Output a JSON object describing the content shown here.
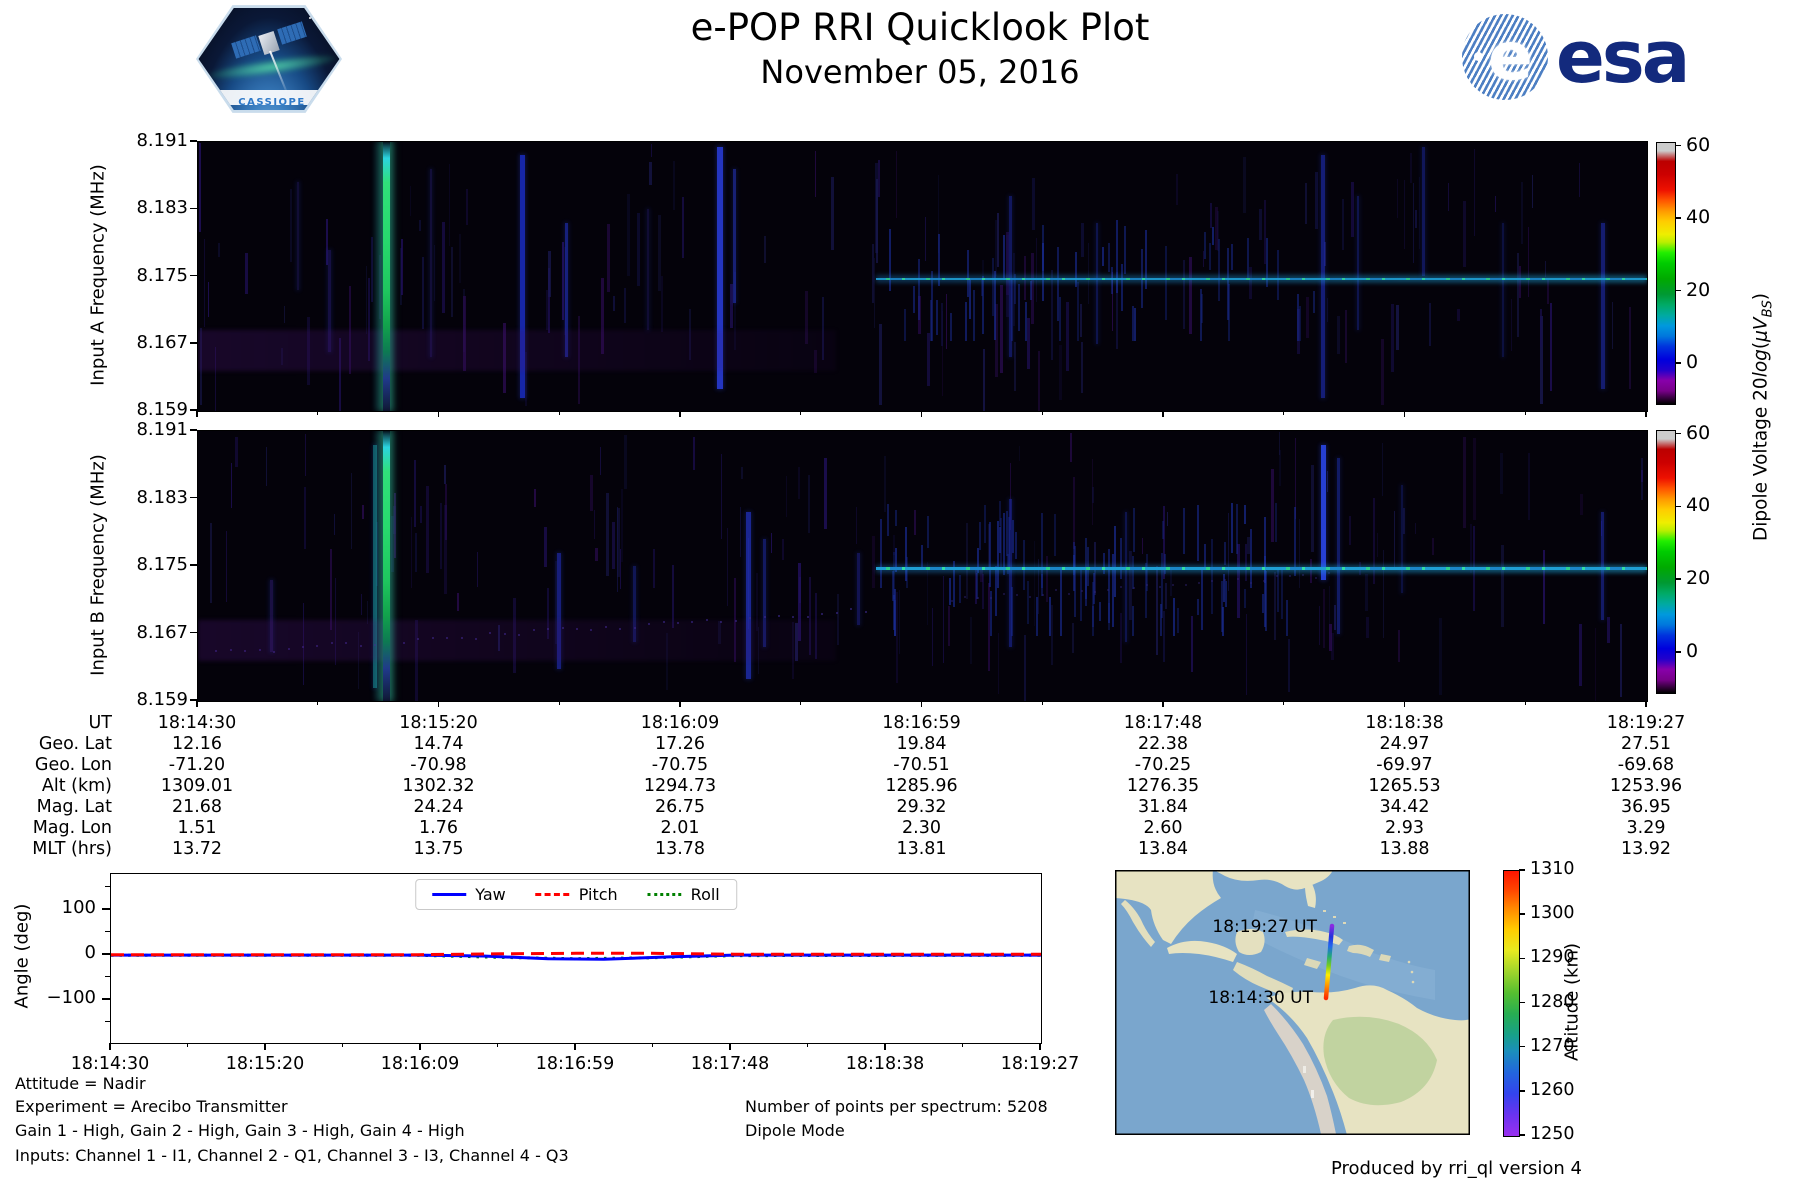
{
  "header": {
    "title": "e-POP RRI Quicklook Plot",
    "subtitle": "November 05, 2016",
    "cassiope_badge_label": "CASSIOPE",
    "esa_globe_letter": "e",
    "esa_wordmark": "esa"
  },
  "spectrograms": {
    "panel_a_ylabel": "Input A Frequency (MHz)",
    "panel_b_ylabel": "Input B Frequency (MHz)",
    "ytick_labels": [
      "8.191",
      "8.183",
      "8.175",
      "8.167",
      "8.159"
    ],
    "colorbar_label": {
      "prefix": "Dipole Voltage 20",
      "log": "log",
      "open": "(",
      "unit": "μV",
      "sub": "BS",
      "close": ")"
    },
    "colorbar_tick_labels": [
      "60",
      "40",
      "20",
      "0"
    ]
  },
  "ephemeris": {
    "row_labels": [
      "UT",
      "Geo. Lat",
      "Geo. Lon",
      "Alt (km)",
      "Mag. Lat",
      "Mag. Lon",
      "MLT (hrs)"
    ],
    "columns": [
      [
        "18:14:30",
        "12.16",
        "-71.20",
        "1309.01",
        "21.68",
        "1.51",
        "13.72"
      ],
      [
        "18:15:20",
        "14.74",
        "-70.98",
        "1302.32",
        "24.24",
        "1.76",
        "13.75"
      ],
      [
        "18:16:09",
        "17.26",
        "-70.75",
        "1294.73",
        "26.75",
        "2.01",
        "13.78"
      ],
      [
        "18:16:59",
        "19.84",
        "-70.51",
        "1285.96",
        "29.32",
        "2.30",
        "13.81"
      ],
      [
        "18:17:48",
        "22.38",
        "-70.25",
        "1276.35",
        "31.84",
        "2.60",
        "13.84"
      ],
      [
        "18:18:38",
        "24.97",
        "-69.97",
        "1265.53",
        "34.42",
        "2.93",
        "13.88"
      ],
      [
        "18:19:27",
        "27.51",
        "-69.68",
        "1253.96",
        "36.95",
        "3.29",
        "13.92"
      ]
    ]
  },
  "angle_plot": {
    "ylabel": "Angle (deg)",
    "ytick_labels": [
      "100",
      "0",
      "−100"
    ],
    "xtick_labels": [
      "18:14:30",
      "18:15:20",
      "18:16:09",
      "18:16:59",
      "18:17:48",
      "18:18:38",
      "18:19:27"
    ]
  },
  "map": {
    "label_end": "18:19:27 UT",
    "label_start": "18:14:30 UT",
    "colorbar_label": "Altitude (km)",
    "colorbar_tick_labels": [
      "1310",
      "1300",
      "1290",
      "1280",
      "1270",
      "1260",
      "1250"
    ]
  },
  "footer": {
    "left_lines": [
      "Attitude = Nadir",
      "Experiment = Arecibo Transmitter",
      "Gain 1 - High, Gain 2 - High, Gain 3 - High, Gain 4 - High",
      "Inputs: Channel 1 - I1, Channel 2 - Q1, Channel 3 - I3, Channel 4 - Q3"
    ],
    "right_lines": [
      "Number of points per spectrum: 5208",
      "Dipole Mode"
    ],
    "credit": "Produced by rri_ql version 4"
  },
  "chart_data": [
    {
      "type": "heatmap",
      "id": "input_a_spectrogram",
      "ylabel": "Input A Frequency (MHz)",
      "ylim_mhz": [
        8.159,
        8.191
      ],
      "y_ticks_mhz": [
        8.191,
        8.183,
        8.175,
        8.167,
        8.159
      ],
      "x_ticks_ut": [
        "18:14:30",
        "18:15:20",
        "18:16:09",
        "18:16:59",
        "18:17:48",
        "18:18:38",
        "18:19:27"
      ],
      "colorbar": {
        "label": "Dipole Voltage 20log(μV_BS)",
        "ticks": [
          60,
          40,
          20,
          0
        ],
        "range": [
          -11,
          61
        ],
        "colormap": "nipy_spectral"
      },
      "features": {
        "transmitter_line": {
          "freq_mhz": 8.1747,
          "x0": 0.468,
          "x1": 1.0,
          "level_db": 25,
          "opacity": 0.9
        },
        "bright_band": {
          "x": 0.128,
          "level_db": 42
        },
        "hash": {
          "x0": 0.47,
          "x1": 0.77,
          "y0": 0.28,
          "y1": 0.74,
          "count": 55
        },
        "vstreaks": [
          [
            0.068,
            2,
            0.15,
            0.55,
            "#1e1860",
            0.5
          ],
          [
            0.09,
            3,
            0.4,
            0.78,
            "#231a70",
            0.55
          ],
          [
            0.16,
            2,
            0.1,
            0.8,
            "#201a68",
            0.5
          ],
          [
            0.222,
            5,
            0.05,
            0.95,
            "#1b2fd0",
            0.8
          ],
          [
            0.253,
            3,
            0.3,
            0.8,
            "#2335c8",
            0.6
          ],
          [
            0.31,
            2,
            0.25,
            0.7,
            "#201a68",
            0.45
          ],
          [
            0.358,
            6,
            0.02,
            0.92,
            "#2a3fe0",
            0.85
          ],
          [
            0.369,
            3,
            0.1,
            0.6,
            "#2a3fe0",
            0.5
          ],
          [
            0.56,
            3,
            0.2,
            0.8,
            "#1e2db0",
            0.5
          ],
          [
            0.62,
            2,
            0.3,
            0.75,
            "#1c2aa0",
            0.45
          ],
          [
            0.775,
            4,
            0.05,
            0.95,
            "#2030c0",
            0.6
          ],
          [
            0.8,
            2,
            0.2,
            0.7,
            "#1c2aa0",
            0.45
          ],
          [
            0.845,
            3,
            0.02,
            0.5,
            "#1c2aa8",
            0.5
          ],
          [
            0.9,
            2,
            0.3,
            0.8,
            "#1a2690",
            0.4
          ],
          [
            0.968,
            4,
            0.3,
            0.92,
            "#2232c4",
            0.55
          ]
        ],
        "noise_seed": 7,
        "noise_count": 150
      }
    },
    {
      "type": "heatmap",
      "id": "input_b_spectrogram",
      "ylabel": "Input B Frequency (MHz)",
      "ylim_mhz": [
        8.159,
        8.191
      ],
      "y_ticks_mhz": [
        8.191,
        8.183,
        8.175,
        8.167,
        8.159
      ],
      "x_ticks_ut": [
        "18:14:30",
        "18:15:20",
        "18:16:09",
        "18:16:59",
        "18:17:48",
        "18:18:38",
        "18:19:27"
      ],
      "colorbar": {
        "label": "Dipole Voltage 20log(μV_BS)",
        "ticks": [
          60,
          40,
          20,
          0
        ],
        "range": [
          -11,
          61
        ],
        "colormap": "nipy_spectral"
      },
      "features": {
        "transmitter_line": {
          "freq_mhz": 8.1747,
          "x0": 0.468,
          "x1": 1.0,
          "level_db": 28,
          "opacity": 1.0
        },
        "bright_band": {
          "x": 0.128,
          "level_db": 45
        },
        "hash": {
          "x0": 0.47,
          "x1": 0.76,
          "y0": 0.26,
          "y1": 0.76,
          "count": 95
        },
        "diagonals": [
          {
            "from": [
              0.012,
              0.82
            ],
            "to": [
              0.46,
              0.66
            ],
            "dots": 46,
            "color": "#3a2a8a",
            "alpha": 0.6
          },
          {
            "from": [
              0.52,
              0.62
            ],
            "to": [
              0.78,
              0.53
            ],
            "dots": 30,
            "color": "#342580",
            "alpha": 0.4
          }
        ],
        "vstreaks": [
          [
            0.05,
            3,
            0.55,
            0.82,
            "#2a1a6a",
            0.6
          ],
          [
            0.121,
            4,
            0.05,
            0.95,
            "#1fb0c8",
            0.45
          ],
          [
            0.248,
            4,
            0.45,
            0.88,
            "#222eb8",
            0.65
          ],
          [
            0.3,
            3,
            0.5,
            0.78,
            "#1c2aa0",
            0.5
          ],
          [
            0.378,
            5,
            0.3,
            0.92,
            "#2436cc",
            0.7
          ],
          [
            0.39,
            3,
            0.4,
            0.8,
            "#2030b8",
            0.5
          ],
          [
            0.455,
            3,
            0.45,
            0.72,
            "#20259a",
            0.5
          ],
          [
            0.56,
            3,
            0.25,
            0.8,
            "#1e2db0",
            0.55
          ],
          [
            0.64,
            2,
            0.3,
            0.78,
            "#1c2aa0",
            0.45
          ],
          [
            0.775,
            5,
            0.05,
            0.55,
            "#2a46e8",
            0.9
          ],
          [
            0.786,
            3,
            0.1,
            0.75,
            "#1e34c0",
            0.5
          ],
          [
            0.83,
            2,
            0.2,
            0.6,
            "#1a2690",
            0.4
          ],
          [
            0.968,
            3,
            0.3,
            0.7,
            "#2232c4",
            0.5
          ]
        ],
        "noise_seed": 13,
        "noise_count": 170
      }
    },
    {
      "type": "line",
      "id": "attitude_angles",
      "ylabel": "Angle (deg)",
      "ylim": [
        -195,
        180
      ],
      "yticks": [
        100,
        0,
        -100
      ],
      "x_ticks_ut": [
        "18:14:30",
        "18:15:20",
        "18:16:09",
        "18:16:59",
        "18:17:48",
        "18:18:38",
        "18:19:27"
      ],
      "legend_position": "upper center",
      "series": [
        {
          "name": "Roll",
          "color": "#008000",
          "style": "dotted",
          "points": [
            [
              0,
              -0.5
            ],
            [
              0.33,
              -0.5
            ],
            [
              0.42,
              -5
            ],
            [
              0.5,
              -8
            ],
            [
              0.58,
              -6
            ],
            [
              0.67,
              -1
            ],
            [
              1,
              -0.5
            ]
          ]
        },
        {
          "name": "Yaw",
          "color": "#0000ff",
          "style": "solid",
          "points": [
            [
              0,
              0
            ],
            [
              0.33,
              0
            ],
            [
              0.4,
              -2
            ],
            [
              0.47,
              -8
            ],
            [
              0.53,
              -9
            ],
            [
              0.6,
              -4
            ],
            [
              0.67,
              0
            ],
            [
              1,
              0
            ]
          ]
        },
        {
          "name": "Pitch",
          "color": "#ff0000",
          "style": "dashed",
          "points": [
            [
              0,
              1
            ],
            [
              0.33,
              1
            ],
            [
              0.42,
              3
            ],
            [
              0.5,
              4
            ],
            [
              0.58,
              4
            ],
            [
              0.67,
              2
            ],
            [
              1,
              2
            ]
          ]
        }
      ]
    },
    {
      "type": "track_map",
      "id": "ground_track",
      "track": {
        "start": {
          "ut": "18:14:30",
          "lat": 12.16,
          "lon": -71.2,
          "alt_km": 1309.01
        },
        "end": {
          "ut": "18:19:27",
          "lat": 27.51,
          "lon": -69.68,
          "alt_km": 1253.96
        }
      },
      "colorbar": {
        "label": "Altitude (km)",
        "ticks": [
          1310,
          1300,
          1290,
          1280,
          1270,
          1260,
          1250
        ],
        "range": [
          1250,
          1310
        ],
        "colormap": "rainbow"
      }
    }
  ]
}
